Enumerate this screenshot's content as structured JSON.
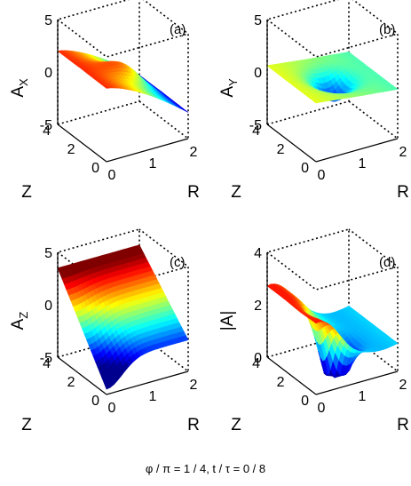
{
  "chart_data": [
    {
      "type": "surface",
      "tag": "(a)",
      "zlabel": "A",
      "zlabel_sub": "X",
      "xlabel": "R",
      "ylabel": "Z",
      "xticks": [
        "0",
        "1",
        "2"
      ],
      "yticks": [
        "0",
        "2",
        "4"
      ],
      "zticks": [
        "5",
        "0",
        "-5"
      ],
      "xlim": [
        0,
        2
      ],
      "ylim": [
        0,
        4
      ],
      "zlim": [
        -5,
        5
      ],
      "surface": "positive plateau (about 0 to 2) near small R falling to about -2.5 at large R; local peak around R=1, Z=2"
    },
    {
      "type": "surface",
      "tag": "(b)",
      "zlabel": "A",
      "zlabel_sub": "Y",
      "xlabel": "R",
      "ylabel": "Z",
      "xticks": [
        "0",
        "1",
        "2"
      ],
      "yticks": [
        "0",
        "2",
        "4"
      ],
      "zticks": [
        "5",
        "0",
        "-5"
      ],
      "xlim": [
        0,
        2
      ],
      "ylim": [
        0,
        4
      ],
      "zlim": [
        -5,
        5
      ],
      "surface": "nearly flat near 0 with a dip of about -2 around R=1, Z=2"
    },
    {
      "type": "surface",
      "tag": "(c)",
      "zlabel": "A",
      "zlabel_sub": "Z",
      "xlabel": "R",
      "ylabel": "Z",
      "xticks": [
        "0",
        "1",
        "2"
      ],
      "yticks": [
        "0",
        "2",
        "4"
      ],
      "zticks": [
        "5",
        "0",
        "-5"
      ],
      "xlim": [
        0,
        2
      ],
      "ylim": [
        0,
        4
      ],
      "zlim": [
        -5,
        5
      ],
      "surface": "about +3 at large Z falling to about -4 at small Z and small R; near 0 at large R"
    },
    {
      "type": "surface",
      "tag": "(d)",
      "zlabel": "|A|",
      "zlabel_sub": "",
      "xlabel": "R",
      "ylabel": "Z",
      "xticks": [
        "0",
        "1",
        "2"
      ],
      "yticks": [
        "0",
        "2",
        "4"
      ],
      "zticks": [
        "4",
        "2",
        "0"
      ],
      "xlim": [
        0,
        2
      ],
      "ylim": [
        0,
        4
      ],
      "zlim": [
        0,
        5
      ],
      "surface": "ridge of about 3.5 along small R, minimum about 0 at R near 0.8, Z near 1.5, rising to about 2 at large R"
    }
  ],
  "caption": "φ / π = 1 / 4,  t / τ = 0 / 8",
  "colors": {
    "colormap": [
      "#00008f",
      "#0000ff",
      "#0080ff",
      "#00ffff",
      "#80ff80",
      "#ffff00",
      "#ff8000",
      "#ff0000",
      "#800000"
    ]
  }
}
